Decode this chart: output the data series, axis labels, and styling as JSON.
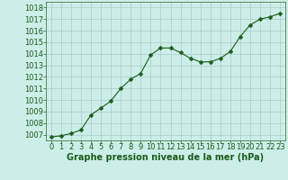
{
  "x": [
    0,
    1,
    2,
    3,
    4,
    5,
    6,
    7,
    8,
    9,
    10,
    11,
    12,
    13,
    14,
    15,
    16,
    17,
    18,
    19,
    20,
    21,
    22,
    23
  ],
  "y": [
    1006.8,
    1006.9,
    1007.1,
    1007.4,
    1008.7,
    1009.3,
    1009.9,
    1011.0,
    1011.8,
    1012.3,
    1013.9,
    1014.5,
    1014.5,
    1014.1,
    1013.6,
    1013.3,
    1013.3,
    1013.6,
    1014.2,
    1015.5,
    1016.5,
    1017.0,
    1017.2,
    1017.5
  ],
  "ylim": [
    1006.5,
    1018.5
  ],
  "yticks": [
    1007,
    1008,
    1009,
    1010,
    1011,
    1012,
    1013,
    1014,
    1015,
    1016,
    1017,
    1018
  ],
  "xlim": [
    -0.5,
    23.5
  ],
  "xticks": [
    0,
    1,
    2,
    3,
    4,
    5,
    6,
    7,
    8,
    9,
    10,
    11,
    12,
    13,
    14,
    15,
    16,
    17,
    18,
    19,
    20,
    21,
    22,
    23
  ],
  "line_color": "#1a5c1a",
  "marker_color": "#1a5c1a",
  "bg_color": "#cceee8",
  "grid_color": "#aacccc",
  "xlabel": "Graphe pression niveau de la mer (hPa)",
  "xlabel_fontsize": 7,
  "tick_fontsize": 6,
  "marker_size": 2.5,
  "line_width": 0.8
}
